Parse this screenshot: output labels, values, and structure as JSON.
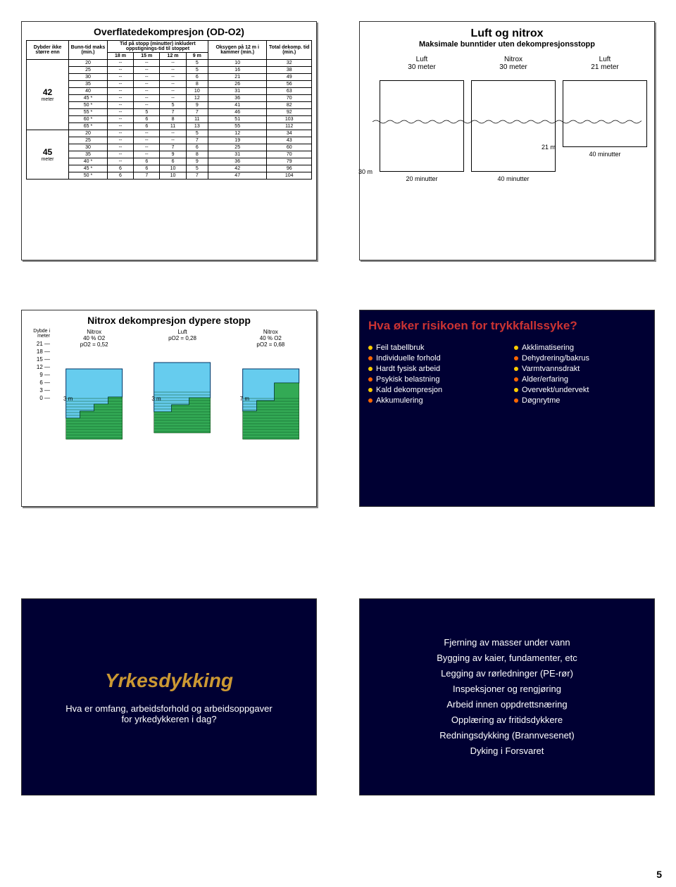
{
  "page_number": "5",
  "slide1": {
    "title": "Overflatedekompresjon (OD-O2)",
    "col_headers1": [
      "Dybder ikke større enn",
      "Bunn-tid maks (min.)",
      "Tid på stopp (minutter) inkludert oppstignings-tid til stoppet",
      "Oksygen på 12 m i kammer (min.)",
      "Total dekomp. tid (min.)"
    ],
    "sub_headers": [
      "18 m",
      "15 m",
      "12 m",
      "9 m"
    ],
    "depth_groups": [
      {
        "label": "42",
        "unit": "meter",
        "rows": [
          [
            "20",
            "--",
            "--",
            "--",
            "5",
            "10",
            "32"
          ],
          [
            "25",
            "--",
            "--",
            "--",
            "5",
            "16",
            "38"
          ],
          [
            "30",
            "--",
            "--",
            "--",
            "6",
            "21",
            "49"
          ],
          [
            "35",
            "--",
            "--",
            "--",
            "8",
            "26",
            "56"
          ],
          [
            "40",
            "--",
            "--",
            "--",
            "10",
            "31",
            "63"
          ],
          [
            "45 *",
            "--",
            "--",
            "--",
            "12",
            "36",
            "70"
          ],
          [
            "50 *",
            "--",
            "--",
            "5",
            "9",
            "41",
            "82"
          ],
          [
            "55 *",
            "--",
            "5",
            "7",
            "7",
            "46",
            "92"
          ],
          [
            "60 *",
            "--",
            "6",
            "8",
            "11",
            "51",
            "103"
          ],
          [
            "65 *",
            "--",
            "6",
            "11",
            "13",
            "55",
            "112"
          ]
        ]
      },
      {
        "label": "45",
        "unit": "meter",
        "rows": [
          [
            "20",
            "--",
            "--",
            "--",
            "5",
            "12",
            "34"
          ],
          [
            "25",
            "--",
            "--",
            "--",
            "7",
            "19",
            "43"
          ],
          [
            "30",
            "--",
            "--",
            "7",
            "6",
            "25",
            "60"
          ],
          [
            "35",
            "--",
            "--",
            "9",
            "8",
            "31",
            "70"
          ],
          [
            "40 *",
            "--",
            "6",
            "6",
            "9",
            "36",
            "79"
          ],
          [
            "45 *",
            "6",
            "6",
            "10",
            "5",
            "42",
            "96"
          ],
          [
            "50 *",
            "6",
            "7",
            "10",
            "7",
            "47",
            "104"
          ]
        ]
      }
    ]
  },
  "slide2": {
    "title": "Luft og nitrox",
    "subtitle": "Maksimale bunntider uten dekompresjonsstopp",
    "cols": [
      {
        "label1": "Luft",
        "label2": "30 meter",
        "depth": "30 m",
        "time": "20 minutter"
      },
      {
        "label1": "Nitrox",
        "label2": "30 meter",
        "depth": "",
        "time": "40 minutter"
      },
      {
        "label1": "Luft",
        "label2": "21 meter",
        "depth": "21 m",
        "time": "40 minutter"
      }
    ]
  },
  "slide3": {
    "title": "Nitrox dekompresjon dypere stopp",
    "y_label": "Dybde i meter",
    "y_ticks": [
      "21",
      "18",
      "15",
      "12",
      "9",
      "6",
      "3",
      "0"
    ],
    "profiles": [
      {
        "name": "Nitrox",
        "sub": "40 % O2",
        "po2": "pO2 = 0,52",
        "step": "3 m",
        "water": "#66ccee",
        "gas": "#33aa55"
      },
      {
        "name": "Luft",
        "sub": "",
        "po2": "pO2 = 0,28",
        "step": "3 m",
        "water": "#66ccee",
        "gas": "#33aa55"
      },
      {
        "name": "Nitrox",
        "sub": "40 % O2",
        "po2": "pO2 = 0,68",
        "step": "7 m",
        "water": "#66ccee",
        "gas": "#33aa55"
      }
    ]
  },
  "slide4": {
    "title": "Hva øker risikoen for trykkfallssyke?",
    "title_color": "#cc3333",
    "left": [
      {
        "c": "#ffcc00",
        "t": "Feil tabellbruk"
      },
      {
        "c": "#ff6600",
        "t": "Individuelle forhold"
      },
      {
        "c": "#ffcc00",
        "t": "Hardt fysisk arbeid"
      },
      {
        "c": "#ff6600",
        "t": "Psykisk belastning"
      },
      {
        "c": "#ffcc00",
        "t": "Kald dekompresjon"
      },
      {
        "c": "#ff6600",
        "t": "Akkumulering"
      }
    ],
    "right": [
      {
        "c": "#ffcc00",
        "t": "Akklimatisering"
      },
      {
        "c": "#ff6600",
        "t": "Dehydrering/bakrus"
      },
      {
        "c": "#ffcc00",
        "t": "Varmtvannsdrakt"
      },
      {
        "c": "#ff6600",
        "t": "Alder/erfaring"
      },
      {
        "c": "#ffcc00",
        "t": "Overvekt/undervekt"
      },
      {
        "c": "#ff6600",
        "t": "Døgnrytme"
      }
    ]
  },
  "slide5": {
    "title": "Yrkesdykking",
    "title_color": "#cc9933",
    "sub": "Hva er omfang, arbeidsforhold og arbeidsoppgaver for yrkedykkeren i dag?"
  },
  "slide6": {
    "items": [
      "Fjerning av masser under vann",
      "Bygging av kaier, fundamenter, etc",
      "Legging av rørledninger (PE-rør)",
      "Inspeksjoner og rengjøring",
      "Arbeid innen oppdrettsnæring",
      "Opplæring av fritidsdykkere",
      "Redningsdykking (Brannvesenet)",
      "Dyking i Forsvaret"
    ]
  }
}
